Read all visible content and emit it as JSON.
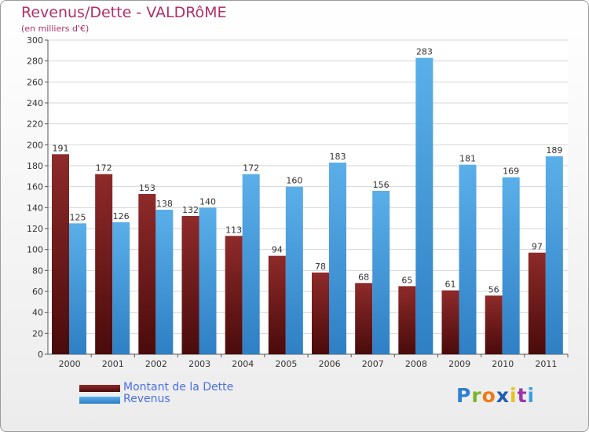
{
  "chart_data": {
    "type": "bar",
    "title": "Revenus/Dette - VALDRôME",
    "subtitle": "(en milliers d'€)",
    "xlabel": "",
    "ylabel": "",
    "ylim": [
      0,
      300
    ],
    "yticks": [
      0,
      20,
      40,
      60,
      80,
      100,
      120,
      140,
      160,
      180,
      200,
      220,
      240,
      260,
      280,
      300
    ],
    "grid": true,
    "legend_position": "bottom-left",
    "categories": [
      "2000",
      "2001",
      "2002",
      "2003",
      "2004",
      "2005",
      "2006",
      "2007",
      "2008",
      "2009",
      "2010",
      "2011"
    ],
    "series": [
      {
        "name": "Montant de la Dette",
        "color": "#7a1e1e",
        "values": [
          191,
          172,
          153,
          132,
          113,
          94,
          78,
          68,
          65,
          61,
          56,
          97
        ]
      },
      {
        "name": "Revenus",
        "color": "#4ea3e2",
        "values": [
          125,
          126,
          138,
          140,
          172,
          160,
          183,
          156,
          283,
          181,
          169,
          189
        ]
      }
    ]
  },
  "brand": {
    "letters": [
      {
        "char": "P",
        "color": "#2f7fd0"
      },
      {
        "char": "r",
        "color": "#7bb52a"
      },
      {
        "char": "o",
        "color": "#f07a18"
      },
      {
        "char": "x",
        "color": "#1f5fb0"
      },
      {
        "char": "i",
        "color": "#e8c21a"
      },
      {
        "char": "t",
        "color": "#9a35a8"
      },
      {
        "char": "i",
        "color": "#3aa0e0"
      }
    ]
  }
}
